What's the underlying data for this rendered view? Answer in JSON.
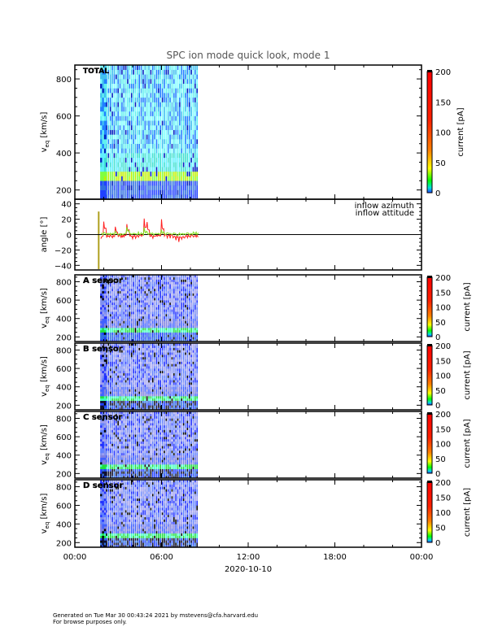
{
  "chart_data": {
    "type": "heatmap",
    "title": "SPC ion mode quick look, mode 1",
    "x_axis": {
      "ticks": [
        "00:00",
        "06:00",
        "12:00",
        "18:00",
        "00:00"
      ],
      "tick_hours": [
        0,
        6,
        12,
        18,
        24
      ],
      "date_label": "2020-10-10",
      "range_hr": [
        0,
        24
      ]
    },
    "scan": {
      "start_hr": 1.75,
      "end_hr": 8.5,
      "interval_hr": 0.2,
      "core_velocity_km_s": 270
    },
    "panels": [
      {
        "label": "TOTAL",
        "ylabel": "v",
        "ylabel_sub": "eq",
        "yunit": " [km/s]",
        "yticks": [
          200,
          400,
          600,
          800
        ],
        "ylim": [
          150,
          875
        ],
        "colorbar": {
          "label": "current [pA]",
          "ticks": [
            0,
            50,
            100,
            150,
            200
          ],
          "range": [
            0,
            200
          ]
        }
      },
      {
        "label": "A sensor",
        "ylabel": "v",
        "ylabel_sub": "eq",
        "yunit": " [km/s]",
        "yticks": [
          200,
          300,
          400,
          500,
          600,
          700,
          800
        ],
        "ytick_labels": [
          "200",
          "",
          "400",
          "",
          "600",
          "",
          "800"
        ],
        "ylim": [
          150,
          875
        ],
        "colorbar": {
          "label": "current [pA]",
          "ticks": [
            0,
            50,
            100,
            150,
            200
          ],
          "range": [
            0,
            200
          ]
        }
      },
      {
        "label": "B sensor",
        "ylabel": "v",
        "ylabel_sub": "eq",
        "yunit": " [km/s]",
        "yticks": [
          200,
          300,
          400,
          500,
          600,
          700,
          800
        ],
        "ytick_labels": [
          "200",
          "",
          "400",
          "",
          "600",
          "",
          "800"
        ],
        "ylim": [
          150,
          875
        ],
        "colorbar": {
          "label": "current [pA]",
          "ticks": [
            0,
            50,
            100,
            150,
            200
          ],
          "range": [
            0,
            200
          ]
        }
      },
      {
        "label": "C sensor",
        "ylabel": "v",
        "ylabel_sub": "eq",
        "yunit": " [km/s]",
        "yticks": [
          200,
          300,
          400,
          500,
          600,
          700,
          800
        ],
        "ytick_labels": [
          "200",
          "",
          "400",
          "",
          "600",
          "",
          "800"
        ],
        "ylim": [
          150,
          875
        ],
        "colorbar": {
          "label": "current [pA]",
          "ticks": [
            0,
            50,
            100,
            150,
            200
          ],
          "range": [
            0,
            200
          ]
        }
      },
      {
        "label": "D sensor",
        "ylabel": "v",
        "ylabel_sub": "eq",
        "yunit": " [km/s]",
        "yticks": [
          200,
          300,
          400,
          500,
          600,
          700,
          800
        ],
        "ytick_labels": [
          "200",
          "",
          "400",
          "",
          "600",
          "",
          "800"
        ],
        "ylim": [
          150,
          875
        ],
        "colorbar": {
          "label": "current [pA]",
          "ticks": [
            0,
            50,
            100,
            150,
            200
          ],
          "range": [
            0,
            200
          ]
        }
      }
    ],
    "angle_panel": {
      "type": "line",
      "ylabel": "angle [°]",
      "yticks": [
        -40,
        -20,
        0,
        20,
        40
      ],
      "ylim": [
        -46,
        46
      ],
      "series": [
        {
          "name": "inflow azimuth",
          "color": "#ff2020",
          "x": [
            1.8,
            2.0,
            2.2,
            2.4,
            2.6,
            2.8,
            3.0,
            3.2,
            3.4,
            3.6,
            3.8,
            4.0,
            4.2,
            4.4,
            4.6,
            4.8,
            5.0,
            5.2,
            5.4,
            5.6,
            5.8,
            6.0,
            6.2,
            6.4,
            6.6,
            6.8,
            7.0,
            7.2,
            7.4,
            7.6,
            7.8,
            8.0,
            8.2,
            8.4
          ],
          "y": [
            -5,
            18,
            -4,
            -3,
            -3,
            10,
            -2,
            -4,
            -4,
            14,
            -3,
            -4,
            -5,
            -2,
            -3,
            21,
            16,
            -3,
            -4,
            -3,
            -2,
            19,
            -2,
            -3,
            -4,
            -5,
            -6,
            -9,
            -7,
            -3,
            -4,
            -5,
            -3,
            -4
          ]
        },
        {
          "name": "inflow attitude",
          "color": "#80e020",
          "x": [
            1.8,
            2.0,
            2.2,
            2.4,
            2.6,
            2.8,
            3.0,
            3.2,
            3.4,
            3.6,
            3.8,
            4.0,
            4.2,
            4.4,
            4.6,
            4.8,
            5.0,
            5.2,
            5.4,
            5.6,
            5.8,
            6.0,
            6.2,
            6.4,
            6.6,
            6.8,
            7.0,
            7.2,
            7.4,
            7.6,
            7.8,
            8.0,
            8.2,
            8.4
          ],
          "y": [
            2,
            3,
            1,
            2,
            2,
            3,
            1,
            2,
            2,
            9,
            2,
            1,
            2,
            2,
            2,
            8,
            4,
            2,
            1,
            2,
            2,
            7,
            2,
            1,
            1,
            2,
            1,
            2,
            1,
            2,
            2,
            1,
            4,
            3
          ]
        }
      ],
      "spike": {
        "x": 1.65,
        "y": [
          -45,
          30
        ],
        "color": "#b0a020"
      }
    }
  },
  "footer": {
    "line1": "Generated on Tue Mar 30 00:43:24 2021 by mstevens@cfa.harvard.edu",
    "line2": "For browse purposes only."
  }
}
